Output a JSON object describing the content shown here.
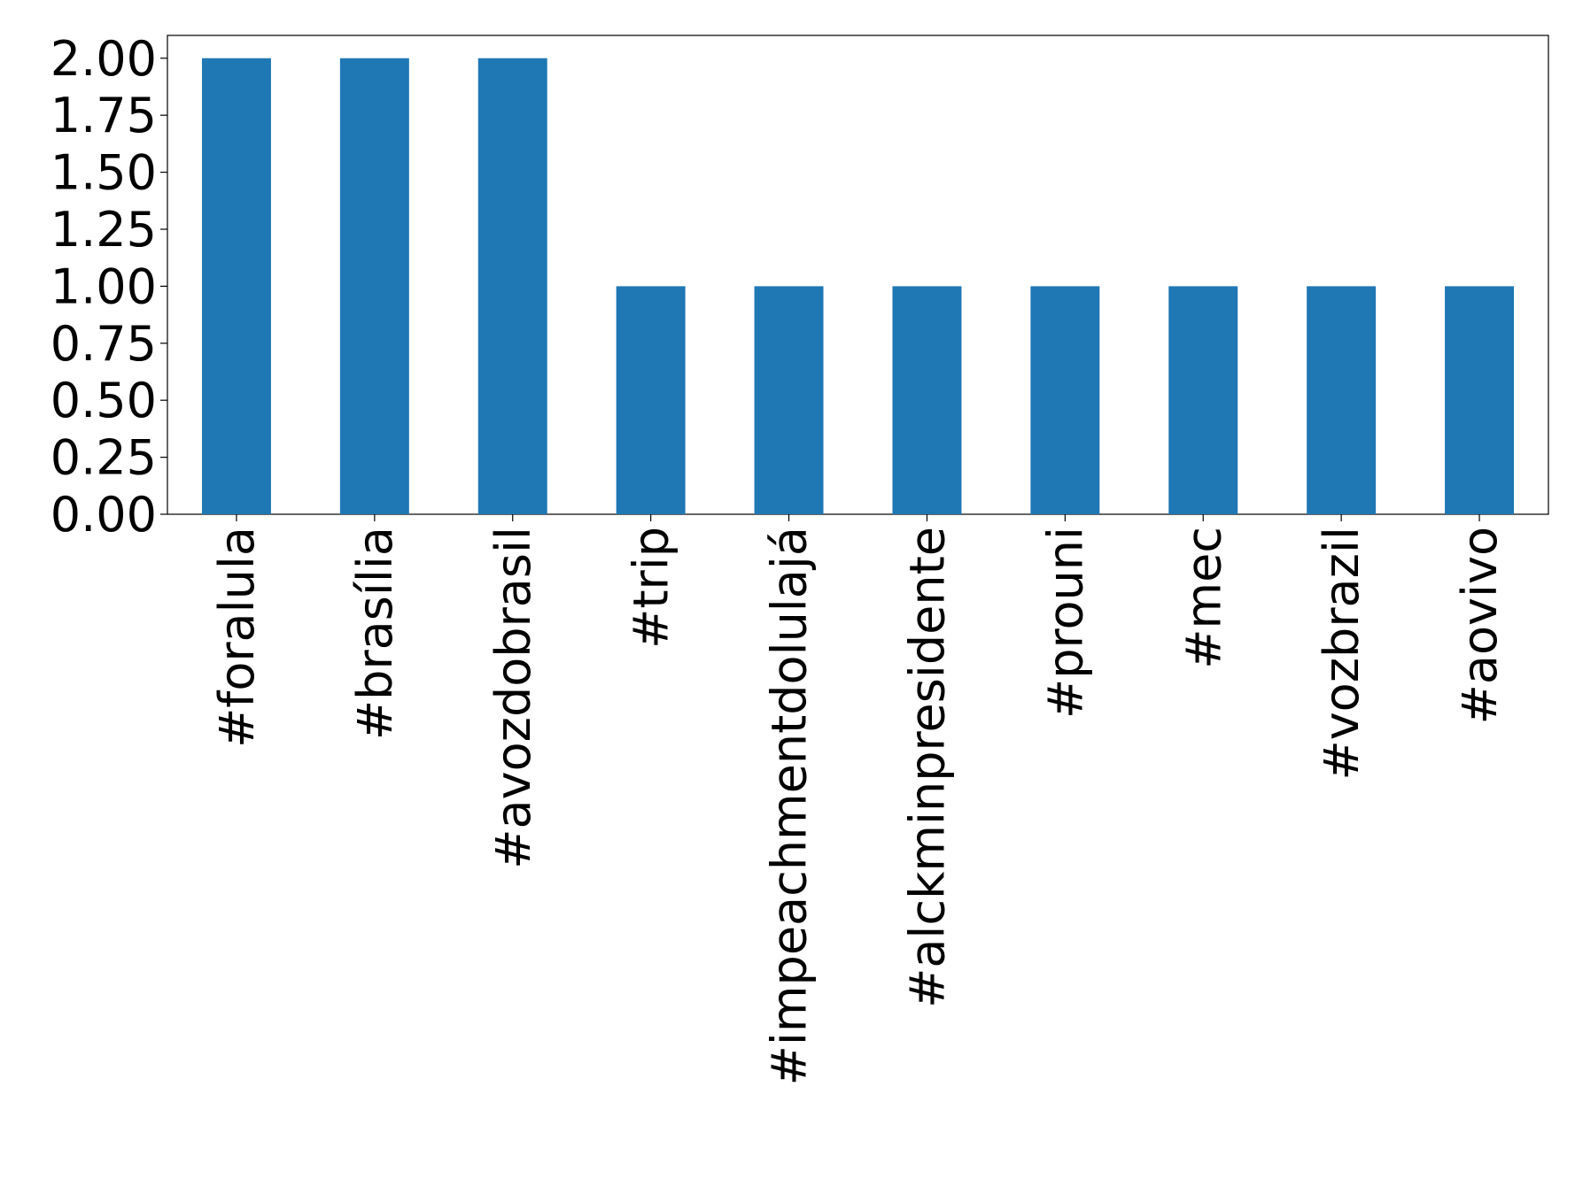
{
  "chart_data": {
    "type": "bar",
    "categories": [
      "#foralula",
      "#brasília",
      "#avozdobrasil",
      "#trip",
      "#impeachmentdolulajá",
      "#alckminpresidente",
      "#prouni",
      "#mec",
      "#vozbrazil",
      "#aovivo"
    ],
    "values": [
      2,
      2,
      2,
      1,
      1,
      1,
      1,
      1,
      1,
      1
    ],
    "color": "#1f77b4",
    "ylim": [
      0,
      2.1
    ],
    "yticks": [
      {
        "value": 0,
        "label": "0.00"
      },
      {
        "value": 0.25,
        "label": "0.25"
      },
      {
        "value": 0.5,
        "label": "0.50"
      },
      {
        "value": 0.75,
        "label": "0.75"
      },
      {
        "value": 1,
        "label": "1.00"
      },
      {
        "value": 1.25,
        "label": "1.25"
      },
      {
        "value": 1.5,
        "label": "1.50"
      },
      {
        "value": 1.75,
        "label": "1.75"
      },
      {
        "value": 2,
        "label": "2.00"
      }
    ],
    "grid": false
  }
}
